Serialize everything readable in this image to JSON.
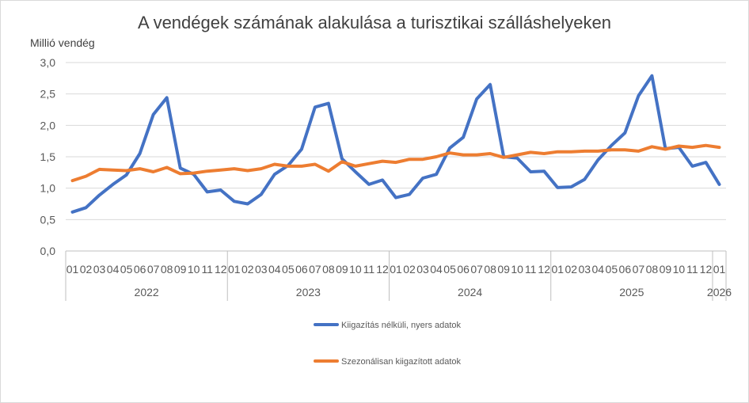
{
  "chart_data": {
    "type": "line",
    "title": "A vendégek számának alakulása a turisztikai szálláshelyeken",
    "ylabel": "Millió vendég",
    "ylim": [
      0,
      3
    ],
    "yticks": [
      "0,0",
      "0,5",
      "1,0",
      "1,5",
      "2,0",
      "2,5",
      "3,0"
    ],
    "grid": true,
    "legend_position": "bottom",
    "month_labels": [
      "01",
      "02",
      "03",
      "04",
      "05",
      "06",
      "07",
      "08",
      "09",
      "10",
      "11",
      "12",
      "01",
      "02",
      "03",
      "04",
      "05",
      "06",
      "07",
      "08",
      "09",
      "10",
      "11",
      "12",
      "01",
      "02",
      "03",
      "04",
      "05",
      "06",
      "07",
      "08",
      "09",
      "10",
      "11",
      "12",
      "01",
      "02",
      "03",
      "04",
      "05",
      "06",
      "07",
      "08",
      "09",
      "10",
      "11",
      "12",
      "01"
    ],
    "year_labels": [
      "2022",
      "2023",
      "2024",
      "2025",
      "2026"
    ],
    "series": [
      {
        "name": "Kiigazítás nélküli, nyers adatok",
        "color": "#4472c4",
        "values": [
          0.62,
          0.69,
          0.89,
          1.06,
          1.21,
          1.55,
          2.17,
          2.44,
          1.32,
          1.22,
          0.94,
          0.97,
          0.79,
          0.75,
          0.9,
          1.22,
          1.36,
          1.62,
          2.29,
          2.35,
          1.47,
          1.26,
          1.06,
          1.13,
          0.85,
          0.9,
          1.16,
          1.22,
          1.64,
          1.81,
          2.42,
          2.65,
          1.5,
          1.48,
          1.26,
          1.27,
          1.01,
          1.02,
          1.14,
          1.45,
          1.68,
          1.88,
          2.47,
          2.79,
          1.63,
          1.65,
          1.35,
          1.41,
          1.06
        ]
      },
      {
        "name": "Szezonálisan kiigazított adatok",
        "color": "#ed7d31",
        "values": [
          1.12,
          1.19,
          1.3,
          1.29,
          1.28,
          1.31,
          1.26,
          1.33,
          1.23,
          1.24,
          1.27,
          1.29,
          1.31,
          1.28,
          1.31,
          1.38,
          1.35,
          1.35,
          1.38,
          1.27,
          1.42,
          1.35,
          1.39,
          1.43,
          1.41,
          1.46,
          1.46,
          1.5,
          1.56,
          1.53,
          1.53,
          1.55,
          1.49,
          1.53,
          1.57,
          1.55,
          1.58,
          1.58,
          1.59,
          1.59,
          1.61,
          1.61,
          1.59,
          1.66,
          1.62,
          1.67,
          1.65,
          1.68,
          1.65
        ]
      }
    ]
  }
}
